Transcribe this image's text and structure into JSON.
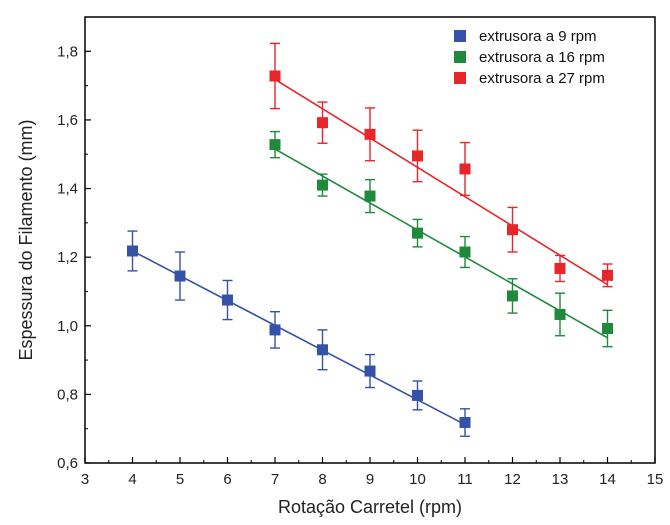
{
  "chart_data": {
    "type": "scatter",
    "title": "",
    "xlabel": "Rotação Carretel (rpm)",
    "ylabel": "Espessura do Filamento (mm)",
    "xlim": [
      3,
      15
    ],
    "ylim": [
      0.6,
      1.9
    ],
    "x_ticks": [
      "3",
      "4",
      "5",
      "6",
      "7",
      "8",
      "9",
      "10",
      "11",
      "12",
      "13",
      "14",
      "15"
    ],
    "y_ticks": [
      "0,6",
      "0,8",
      "1,0",
      "1,2",
      "1,4",
      "1,6",
      "1,8"
    ],
    "grid": false,
    "legend_position": "top-right",
    "series": [
      {
        "name": "extrusora a  9 rpm",
        "color": "#3552a8",
        "x": [
          4,
          5,
          6,
          7,
          8,
          9,
          10,
          11
        ],
        "y": [
          1.218,
          1.145,
          1.075,
          0.988,
          0.93,
          0.868,
          0.797,
          0.718
        ],
        "err": [
          0.058,
          0.07,
          0.057,
          0.053,
          0.058,
          0.048,
          0.042,
          0.04
        ],
        "fit": [
          [
            4,
            1.218
          ],
          [
            11,
            0.712
          ]
        ]
      },
      {
        "name": "extrusora a 16 rpm",
        "color": "#1f8a3c",
        "x": [
          7,
          8,
          9,
          10,
          11,
          12,
          13,
          14
        ],
        "y": [
          1.528,
          1.41,
          1.378,
          1.27,
          1.215,
          1.087,
          1.033,
          0.992
        ],
        "err": [
          0.038,
          0.032,
          0.048,
          0.04,
          0.045,
          0.05,
          0.062,
          0.053
        ],
        "fit": [
          [
            7,
            1.515
          ],
          [
            14,
            0.965
          ]
        ]
      },
      {
        "name": "extrusora a 27 rpm",
        "color": "#e8262a",
        "x": [
          7,
          8,
          9,
          10,
          11,
          12,
          13,
          14
        ],
        "y": [
          1.728,
          1.592,
          1.558,
          1.495,
          1.457,
          1.28,
          1.167,
          1.147
        ],
        "err": [
          0.095,
          0.06,
          0.077,
          0.075,
          0.077,
          0.065,
          0.038,
          0.033
        ],
        "fit": [
          [
            7,
            1.718
          ],
          [
            14,
            1.12
          ]
        ]
      }
    ]
  }
}
